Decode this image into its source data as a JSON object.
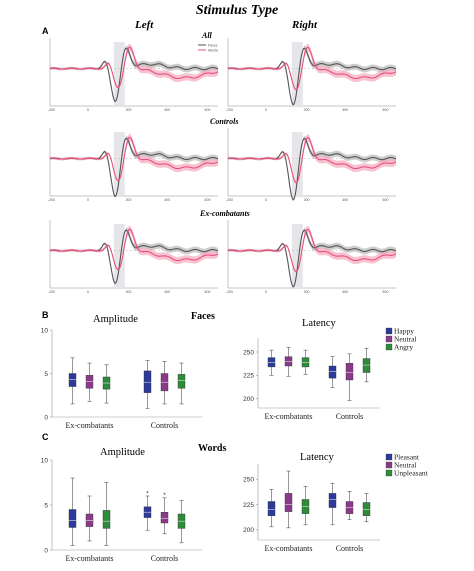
{
  "figure": {
    "title": "Stimulus Type",
    "columns": [
      "Left",
      "Right"
    ],
    "panel_labels": [
      "A",
      "B",
      "C"
    ],
    "erp_rows": [
      "All",
      "Controls",
      "Ex-combatants"
    ],
    "erp_legend": [
      "Faces",
      "Words"
    ],
    "faces_title": "Faces",
    "words_title": "Words"
  },
  "colors": {
    "faces_line": "#555555",
    "words_line": "#e8507a",
    "words_band": "#f4a8bd",
    "faces_band": "#b8b8b8",
    "highlight": "#e6e6ea",
    "happy": "#2b3a9b",
    "neutral": "#8b3a8b",
    "angry": "#2e8b3a",
    "pleasant": "#2b3a9b",
    "unpleasant": "#2e8b3a"
  },
  "chart_data": [
    {
      "type": "box",
      "panel": "B",
      "title": "Amplitude",
      "categories": [
        "Ex-combatants",
        "Controls"
      ],
      "ylim": [
        0,
        10
      ],
      "yticks": [
        0,
        5,
        10
      ],
      "series": [
        {
          "name": "Happy",
          "boxes": [
            {
              "min": 1.5,
              "q1": 3.5,
              "median": 4.3,
              "q3": 5.0,
              "max": 6.8
            },
            {
              "min": 1.0,
              "q1": 2.8,
              "median": 4.0,
              "q3": 5.3,
              "max": 6.5
            }
          ]
        },
        {
          "name": "Neutral",
          "boxes": [
            {
              "min": 1.8,
              "q1": 3.3,
              "median": 4.1,
              "q3": 4.8,
              "max": 6.2
            },
            {
              "min": 1.5,
              "q1": 3.0,
              "median": 4.0,
              "q3": 5.0,
              "max": 6.4
            }
          ]
        },
        {
          "name": "Angry",
          "boxes": [
            {
              "min": 1.6,
              "q1": 3.2,
              "median": 3.9,
              "q3": 4.6,
              "max": 6.0
            },
            {
              "min": 1.5,
              "q1": 3.3,
              "median": 4.2,
              "q3": 4.9,
              "max": 6.2
            }
          ]
        }
      ]
    },
    {
      "type": "box",
      "panel": "B",
      "title": "Latency",
      "categories": [
        "Ex-combatants",
        "Controls"
      ],
      "ylim": [
        190,
        265
      ],
      "yticks": [
        200,
        225,
        250
      ],
      "legend": [
        "Happy",
        "Neutral",
        "Angry"
      ],
      "series": [
        {
          "name": "Happy",
          "boxes": [
            {
              "min": 225,
              "q1": 234,
              "median": 239,
              "q3": 244,
              "max": 252
            },
            {
              "min": 212,
              "q1": 222,
              "median": 229,
              "q3": 235,
              "max": 245
            }
          ]
        },
        {
          "name": "Neutral",
          "boxes": [
            {
              "min": 224,
              "q1": 235,
              "median": 240,
              "q3": 245,
              "max": 255
            },
            {
              "min": 198,
              "q1": 220,
              "median": 228,
              "q3": 238,
              "max": 248
            }
          ]
        },
        {
          "name": "Angry",
          "boxes": [
            {
              "min": 226,
              "q1": 234,
              "median": 239,
              "q3": 244,
              "max": 252
            },
            {
              "min": 218,
              "q1": 228,
              "median": 236,
              "q3": 243,
              "max": 254
            }
          ]
        }
      ]
    },
    {
      "type": "box",
      "panel": "C",
      "title": "Amplitude",
      "categories": [
        "Ex-combatants",
        "Controls"
      ],
      "ylim": [
        0,
        10
      ],
      "yticks": [
        0,
        5,
        10
      ],
      "series": [
        {
          "name": "Pleasant",
          "boxes": [
            {
              "min": 0.5,
              "q1": 2.5,
              "median": 3.3,
              "q3": 4.5,
              "max": 8.0
            },
            {
              "min": 2.2,
              "q1": 3.6,
              "median": 4.2,
              "q3": 4.8,
              "max": 6.0
            }
          ]
        },
        {
          "name": "Neutral",
          "boxes": [
            {
              "min": 1.0,
              "q1": 2.6,
              "median": 3.3,
              "q3": 4.0,
              "max": 6.0
            },
            {
              "min": 1.8,
              "q1": 3.0,
              "median": 3.5,
              "q3": 4.2,
              "max": 5.8
            }
          ]
        },
        {
          "name": "Unpleasant",
          "boxes": [
            {
              "min": 0.5,
              "q1": 2.4,
              "median": 3.2,
              "q3": 4.4,
              "max": 7.5
            },
            {
              "min": 0.8,
              "q1": 2.4,
              "median": 3.2,
              "q3": 4.0,
              "max": 5.5
            }
          ]
        }
      ]
    },
    {
      "type": "box",
      "panel": "C",
      "title": "Latency",
      "categories": [
        "Ex-combatants",
        "Controls"
      ],
      "ylim": [
        190,
        265
      ],
      "yticks": [
        200,
        225,
        250
      ],
      "legend": [
        "Pleasant",
        "Neutral",
        "Unpleasant"
      ],
      "series": [
        {
          "name": "Pleasant",
          "boxes": [
            {
              "min": 203,
              "q1": 214,
              "median": 220,
              "q3": 228,
              "max": 240
            },
            {
              "min": 205,
              "q1": 222,
              "median": 230,
              "q3": 236,
              "max": 246
            }
          ]
        },
        {
          "name": "Neutral",
          "boxes": [
            {
              "min": 202,
              "q1": 218,
              "median": 225,
              "q3": 236,
              "max": 258
            },
            {
              "min": 210,
              "q1": 216,
              "median": 222,
              "q3": 228,
              "max": 238
            }
          ]
        },
        {
          "name": "Unpleasant",
          "boxes": [
            {
              "min": 205,
              "q1": 216,
              "median": 223,
              "q3": 230,
              "max": 243
            },
            {
              "min": 208,
              "q1": 214,
              "median": 220,
              "q3": 227,
              "max": 236
            }
          ]
        }
      ]
    }
  ]
}
